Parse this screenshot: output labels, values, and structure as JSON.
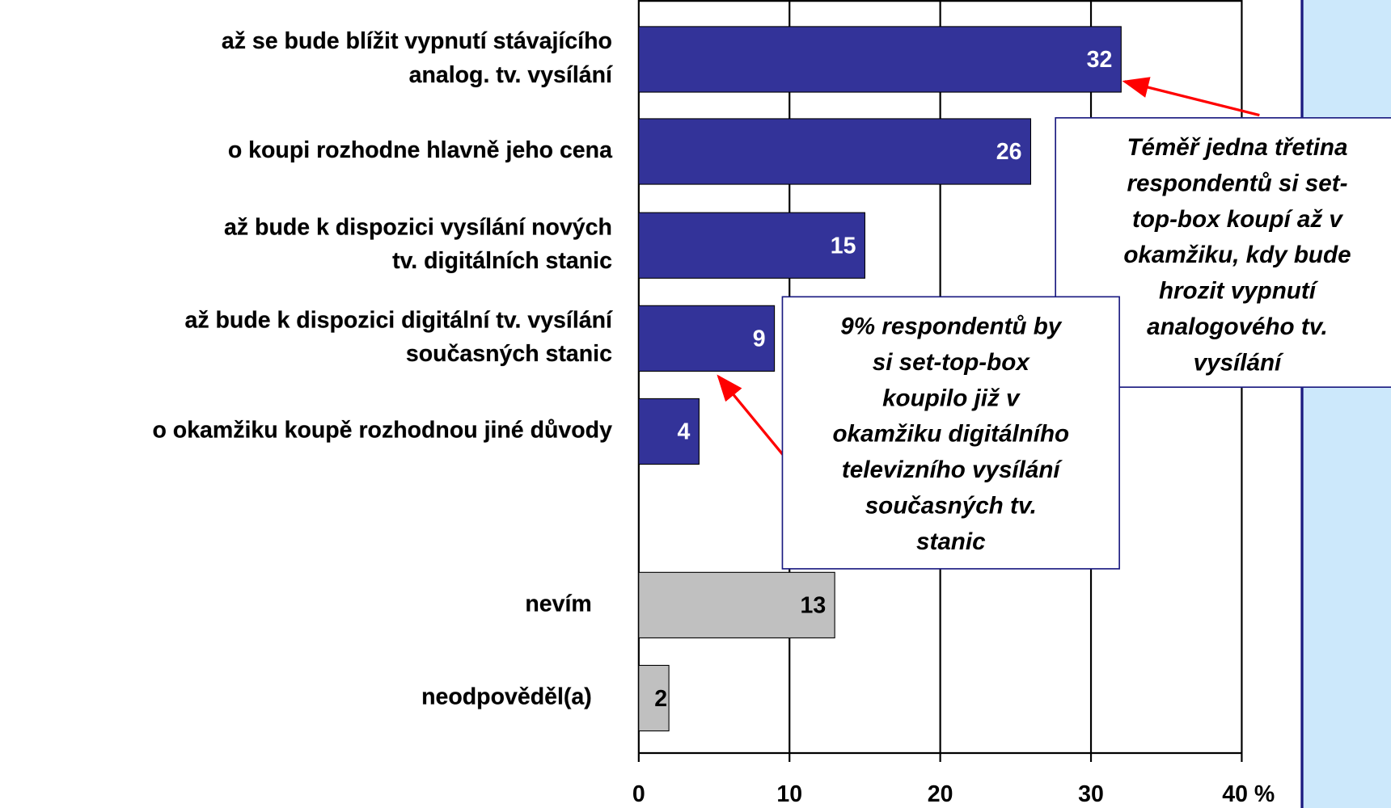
{
  "chart_data": {
    "type": "bar",
    "orientation": "horizontal",
    "categories": [
      [
        "až se bude blížit vypnutí stávajícího",
        "analog. tv. vysílání"
      ],
      [
        "o koupi rozhodne hlavně jeho cena"
      ],
      [
        "až bude k dispozici vysílání nových",
        "tv. digitálních stanic"
      ],
      [
        "až bude k dispozici digitální tv. vysílání",
        "současných stanic"
      ],
      [
        "o okamžiku koupě rozhodnou jiné důvody"
      ],
      [
        "nevím"
      ],
      [
        "neodpověděl(a)"
      ]
    ],
    "values": [
      32,
      26,
      15,
      9,
      4,
      13,
      2
    ],
    "colors": [
      "#333399",
      "#333399",
      "#333399",
      "#333399",
      "#333399",
      "#c0c0c0",
      "#c0c0c0"
    ],
    "xlim": [
      0,
      40
    ],
    "xticks": [
      0,
      10,
      20,
      30,
      {
        "value": 40,
        "label": "40 %"
      }
    ],
    "grid": true,
    "annotations": [
      {
        "lines": [
          "Téměř jedna třetina",
          "respondentů si set-",
          "top-box koupí až v",
          "okamžiku, kdy bude",
          "hrozit vypnutí",
          "analogového tv.",
          "vysílání"
        ],
        "points_to": 0
      },
      {
        "lines": [
          "9% respondentů by",
          "si set-top-box",
          "koupilo již v",
          "okamžiku digitálního",
          "televizního vysílání",
          "současných tv.",
          "stanic"
        ],
        "points_to": 3
      }
    ]
  }
}
